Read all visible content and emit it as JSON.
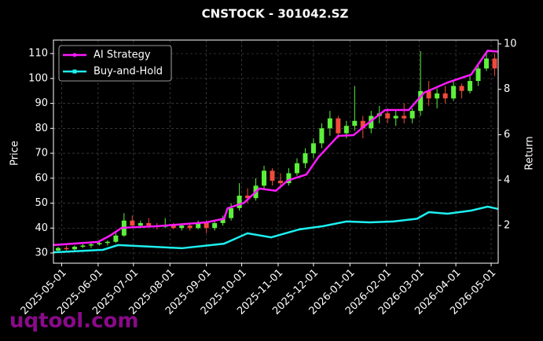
{
  "chart_data": {
    "type": "candlestick",
    "title": "CNSTOCK - 301042.SZ",
    "ylabel": "Price",
    "y2label": "Return",
    "watermark": "uqtool.com",
    "up_color": "#5cf03c",
    "down_color": "#f04a3c",
    "grid": true,
    "legend": "upper left",
    "xlim": [
      "2025-04-24",
      "2026-05-07"
    ],
    "ylim": [
      25.9,
      115.4
    ],
    "y2lim": [
      0.34,
      10.17
    ],
    "xticks": [
      "2025-05-01",
      "2025-06-01",
      "2025-07-01",
      "2025-08-01",
      "2025-09-01",
      "2025-10-01",
      "2025-11-01",
      "2025-12-01",
      "2026-01-01",
      "2026-02-01",
      "2026-03-01",
      "2026-04-01",
      "2026-05-01"
    ],
    "yticks": [
      30,
      40,
      50,
      60,
      70,
      80,
      90,
      100,
      110
    ],
    "y2ticks": [
      2,
      4,
      6,
      8,
      10
    ],
    "x": [
      "2025-04-28",
      "2025-05-05",
      "2025-05-12",
      "2025-05-19",
      "2025-05-26",
      "2025-06-02",
      "2025-06-09",
      "2025-06-16",
      "2025-06-23",
      "2025-06-30",
      "2025-07-07",
      "2025-07-14",
      "2025-07-21",
      "2025-07-28",
      "2025-08-04",
      "2025-08-11",
      "2025-08-18",
      "2025-08-25",
      "2025-09-01",
      "2025-09-08",
      "2025-09-15",
      "2025-09-22",
      "2025-09-29",
      "2025-10-06",
      "2025-10-13",
      "2025-10-20",
      "2025-10-27",
      "2025-11-03",
      "2025-11-10",
      "2025-11-17",
      "2025-11-24",
      "2025-12-01",
      "2025-12-08",
      "2025-12-15",
      "2025-12-22",
      "2025-12-29",
      "2026-01-05",
      "2026-01-12",
      "2026-01-19",
      "2026-01-26",
      "2026-02-02",
      "2026-02-09",
      "2026-02-16",
      "2026-02-23",
      "2026-03-02",
      "2026-03-09",
      "2026-03-16",
      "2026-03-23",
      "2026-03-30",
      "2026-04-06",
      "2026-04-13",
      "2026-04-20",
      "2026-04-27",
      "2026-05-04"
    ],
    "open": [
      31,
      32,
      31.5,
      32.5,
      33,
      33.5,
      34,
      34.5,
      37,
      43,
      41,
      42,
      41,
      40.5,
      41,
      40,
      41,
      40,
      42,
      40,
      42,
      44,
      48,
      53,
      52,
      57,
      63,
      59,
      58,
      62,
      66,
      70,
      74,
      80,
      84,
      78,
      81,
      83,
      80,
      85,
      86,
      84,
      85,
      84,
      87,
      95,
      92,
      94,
      92,
      97,
      95,
      99,
      104,
      108
    ],
    "high": [
      32.5,
      33,
      33,
      33.5,
      34,
      34.5,
      35,
      38,
      46,
      45,
      43,
      44,
      42,
      44,
      42,
      41.5,
      42,
      43,
      43,
      43,
      45,
      50,
      58,
      56,
      60,
      65,
      64,
      62,
      64,
      68,
      72,
      76,
      82,
      87,
      85,
      83,
      97,
      85,
      87,
      89,
      88,
      87,
      90,
      88,
      111,
      99,
      96,
      97,
      99,
      98,
      101,
      106,
      111,
      110
    ],
    "low": [
      30.5,
      31,
      31,
      32,
      32,
      33,
      33,
      34,
      36.5,
      40,
      40,
      40.5,
      39.5,
      40,
      39.5,
      39,
      39,
      39.5,
      38,
      39,
      41,
      43,
      47,
      50,
      51,
      56,
      57,
      56,
      57,
      61,
      64,
      68,
      72,
      77,
      76,
      76,
      79,
      76,
      78,
      82,
      82,
      81,
      82,
      82,
      85,
      89,
      88,
      90,
      91,
      92,
      94,
      97,
      103,
      101
    ],
    "close": [
      32,
      31.5,
      32.5,
      33,
      33.5,
      34,
      34.5,
      37,
      43,
      41,
      42,
      41,
      40.5,
      41,
      40,
      41,
      40,
      42,
      40,
      42,
      44,
      48,
      53,
      52,
      57,
      63,
      59,
      58,
      62,
      66,
      70,
      74,
      80,
      84,
      78,
      81,
      83,
      80,
      85,
      86,
      84,
      85,
      84,
      87,
      95,
      92,
      94,
      92,
      97,
      95,
      99,
      104,
      108,
      104
    ],
    "series": [
      {
        "name": "AI Strategy",
        "color": "#ff1aff",
        "axis": "y2",
        "x": [
          "2025-04-24",
          "2025-06-01",
          "2025-06-11",
          "2025-06-21",
          "2025-07-21",
          "2025-09-01",
          "2025-09-16",
          "2025-09-19",
          "2025-10-03",
          "2025-10-16",
          "2025-10-30",
          "2025-11-09",
          "2025-11-25",
          "2025-12-05",
          "2025-12-22",
          "2026-01-04",
          "2026-01-18",
          "2026-01-31",
          "2026-02-20",
          "2026-03-05",
          "2026-03-25",
          "2026-04-14",
          "2026-04-28",
          "2026-05-07"
        ],
        "values": [
          1.14,
          1.28,
          1.55,
          1.9,
          1.97,
          2.14,
          2.3,
          2.76,
          3.0,
          3.63,
          3.53,
          3.98,
          4.25,
          5.0,
          5.95,
          5.98,
          6.57,
          7.09,
          7.09,
          7.85,
          8.3,
          8.65,
          9.7,
          9.66
        ]
      },
      {
        "name": "Buy-and-Hold",
        "color": "#1ef0f0",
        "axis": "y2",
        "x": [
          "2025-04-24",
          "2025-06-05",
          "2025-06-18",
          "2025-08-11",
          "2025-09-16",
          "2025-10-06",
          "2025-10-26",
          "2025-11-19",
          "2025-12-09",
          "2025-12-29",
          "2026-01-18",
          "2026-02-07",
          "2026-02-27",
          "2026-03-09",
          "2026-03-25",
          "2026-04-14",
          "2026-04-28",
          "2026-05-07"
        ],
        "values": [
          0.82,
          0.93,
          1.14,
          1.0,
          1.2,
          1.66,
          1.48,
          1.83,
          1.97,
          2.18,
          2.14,
          2.18,
          2.3,
          2.59,
          2.52,
          2.66,
          2.83,
          2.73
        ]
      }
    ]
  }
}
